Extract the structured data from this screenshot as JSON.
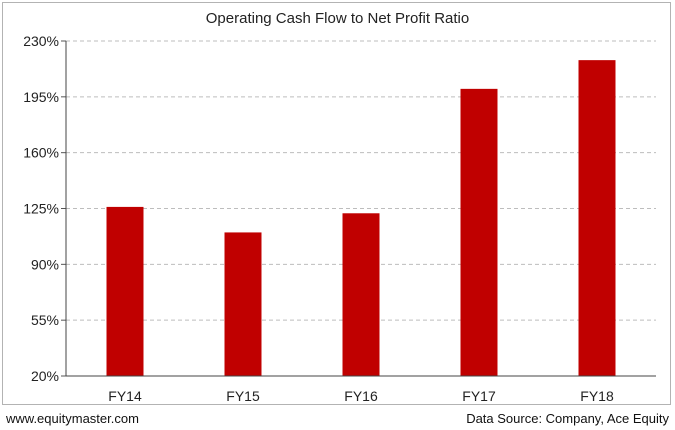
{
  "chart_data": {
    "type": "bar",
    "title": "Operating Cash Flow to Net Profit Ratio",
    "categories": [
      "FY14",
      "FY15",
      "FY16",
      "FY17",
      "FY18"
    ],
    "values": [
      126,
      110,
      122,
      200,
      218
    ],
    "y_ticks": [
      "20%",
      "55%",
      "90%",
      "125%",
      "160%",
      "195%",
      "230%"
    ],
    "ylim": [
      20,
      230
    ],
    "ytick_values": [
      20,
      55,
      90,
      125,
      160,
      195,
      230
    ],
    "grid": true,
    "bar_color": "#c00000",
    "legend": "none"
  },
  "footer": {
    "website": "www.equitymaster.com",
    "source": "Data Source: Company, Ace Equity"
  }
}
